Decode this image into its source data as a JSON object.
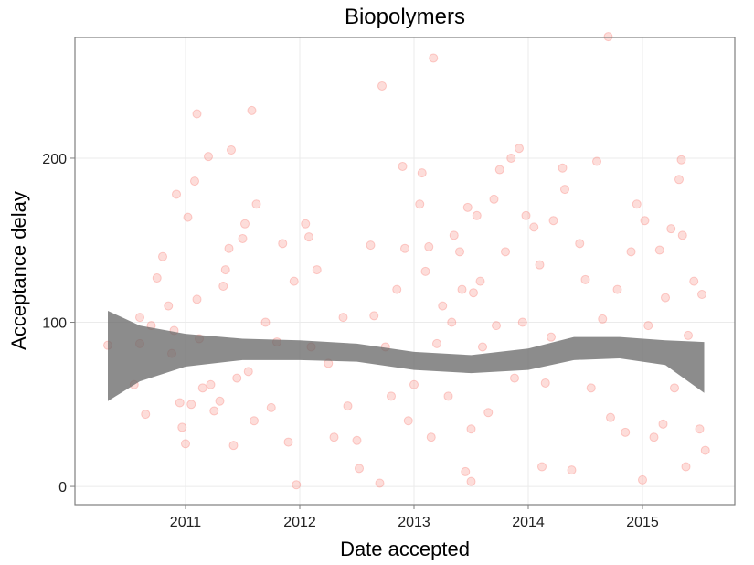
{
  "chart_data": {
    "type": "scatter",
    "title": "Biopolymers",
    "x_label": "Date accepted",
    "y_label": "Acceptance delay",
    "xlim": [
      2010.032,
      2015.808
    ],
    "xticks": [
      2011,
      2012,
      2013,
      2014,
      2015
    ],
    "ylim": [
      -11.1,
      273.5
    ],
    "yticks": [
      0,
      100,
      200
    ],
    "grid": true,
    "points": {
      "color": "#f8766d",
      "x": [
        2010.32,
        2010.6,
        2010.6,
        2010.55,
        2010.65,
        2010.7,
        2010.75,
        2010.8,
        2010.85,
        2010.9,
        2010.88,
        2010.92,
        2010.95,
        2010.97,
        2011.0,
        2011.02,
        2011.05,
        2011.08,
        2011.1,
        2011.1,
        2011.12,
        2011.15,
        2011.2,
        2011.22,
        2011.25,
        2011.3,
        2011.33,
        2011.35,
        2011.38,
        2011.4,
        2011.42,
        2011.45,
        2011.5,
        2011.52,
        2011.55,
        2011.58,
        2011.6,
        2011.62,
        2011.7,
        2011.75,
        2011.8,
        2011.85,
        2011.9,
        2011.95,
        2011.97,
        2012.05,
        2012.08,
        2012.1,
        2012.15,
        2012.25,
        2012.3,
        2012.38,
        2012.42,
        2012.5,
        2012.52,
        2012.62,
        2012.65,
        2012.7,
        2012.72,
        2012.75,
        2012.8,
        2012.85,
        2012.9,
        2012.92,
        2012.95,
        2013.0,
        2013.05,
        2013.07,
        2013.1,
        2013.13,
        2013.15,
        2013.17,
        2013.2,
        2013.25,
        2013.3,
        2013.33,
        2013.35,
        2013.4,
        2013.42,
        2013.45,
        2013.47,
        2013.5,
        2013.5,
        2013.52,
        2013.55,
        2013.58,
        2013.6,
        2013.65,
        2013.7,
        2013.72,
        2013.75,
        2013.8,
        2013.85,
        2013.88,
        2013.92,
        2013.95,
        2013.98,
        2014.05,
        2014.1,
        2014.12,
        2014.15,
        2014.2,
        2014.22,
        2014.3,
        2014.32,
        2014.38,
        2014.45,
        2014.5,
        2014.55,
        2014.6,
        2014.65,
        2014.7,
        2014.72,
        2014.78,
        2014.85,
        2014.9,
        2014.95,
        2015.0,
        2015.02,
        2015.05,
        2015.1,
        2015.15,
        2015.18,
        2015.2,
        2015.25,
        2015.28,
        2015.32,
        2015.34,
        2015.35,
        2015.38,
        2015.4,
        2015.45,
        2015.5,
        2015.52,
        2015.55
      ],
      "y": [
        86,
        103,
        87,
        62,
        44,
        98,
        127,
        140,
        110,
        95,
        81,
        178,
        51,
        36,
        26,
        164,
        50,
        186,
        227,
        114,
        90,
        60,
        201,
        62,
        46,
        52,
        122,
        132,
        145,
        205,
        25,
        66,
        151,
        160,
        70,
        229,
        40,
        172,
        100,
        48,
        88,
        148,
        27,
        125,
        1,
        160,
        152,
        85,
        132,
        75,
        30,
        103,
        49,
        28,
        11,
        147,
        104,
        2,
        244,
        85,
        55,
        120,
        195,
        145,
        40,
        62,
        172,
        191,
        131,
        146,
        30,
        261,
        87,
        110,
        55,
        100,
        153,
        143,
        120,
        9,
        170,
        35,
        3,
        118,
        165,
        125,
        85,
        45,
        175,
        98,
        193,
        143,
        200,
        66,
        206,
        100,
        165,
        158,
        135,
        12,
        63,
        91,
        162,
        194,
        181,
        10,
        148,
        126,
        60,
        198,
        102,
        274,
        42,
        120,
        33,
        143,
        172,
        4,
        162,
        98,
        30,
        144,
        38,
        115,
        157,
        60,
        187,
        199,
        153,
        12,
        92,
        125,
        35,
        117,
        22
      ]
    },
    "band": {
      "color": "#666666",
      "x": [
        2010.32,
        2010.6,
        2011.0,
        2011.5,
        2012.0,
        2012.5,
        2013.0,
        2013.5,
        2014.0,
        2014.4,
        2014.8,
        2015.2,
        2015.54
      ],
      "lower": [
        52,
        64,
        73,
        77,
        77,
        76,
        71,
        69,
        71,
        77,
        78,
        74,
        57
      ],
      "upper": [
        107,
        98,
        93,
        90,
        89,
        87,
        82,
        80,
        84,
        91,
        91,
        89,
        88
      ]
    }
  }
}
